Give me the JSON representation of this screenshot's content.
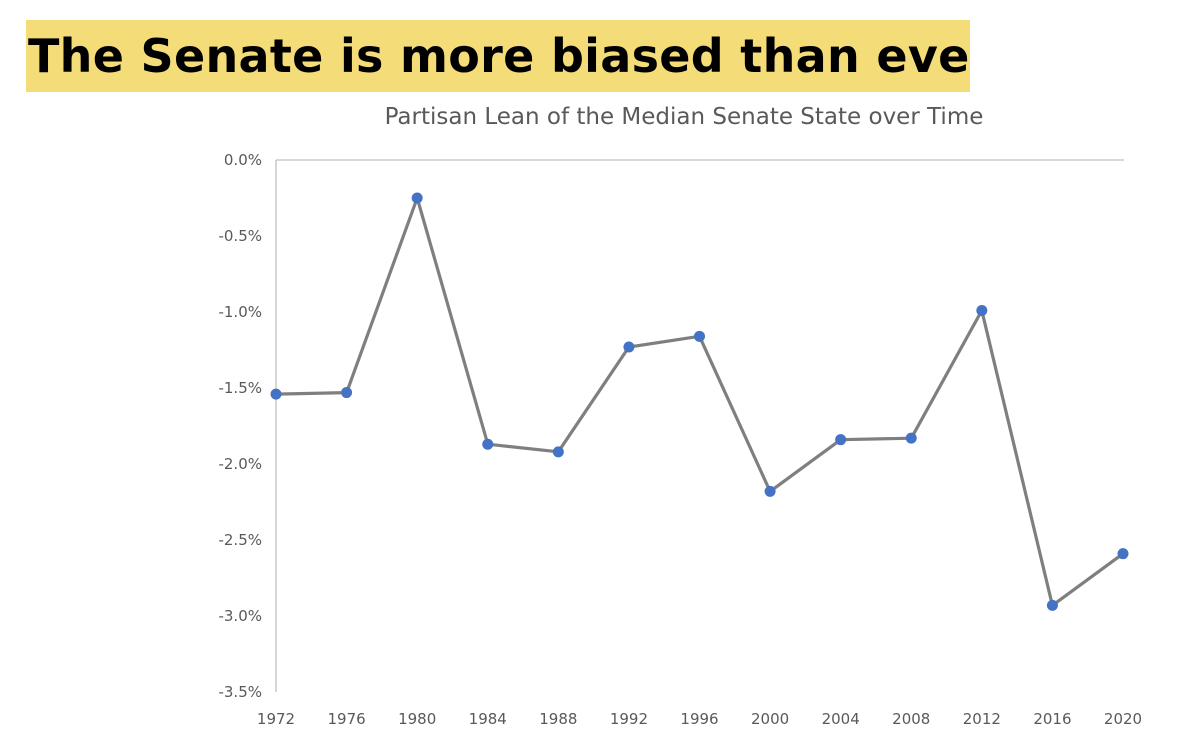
{
  "headline": "The Senate is more biased than ever",
  "chart_data": {
    "type": "line",
    "title": "Partisan Lean of the Median Senate State over Time",
    "xlabel": "",
    "ylabel": "",
    "x": [
      "1972",
      "1976",
      "1980",
      "1984",
      "1988",
      "1992",
      "1996",
      "2000",
      "2004",
      "2008",
      "2012",
      "2016",
      "2020"
    ],
    "y": [
      -1.54,
      -1.53,
      -0.25,
      -1.87,
      -1.92,
      -1.23,
      -1.16,
      -2.18,
      -1.84,
      -1.83,
      -0.99,
      -2.93,
      -2.59
    ],
    "y_unit": "%",
    "ylim": [
      -3.5,
      0.0
    ],
    "yticks": [
      "0.0%",
      "-0.5%",
      "-1.0%",
      "-1.5%",
      "-2.0%",
      "-2.5%",
      "-3.0%",
      "-3.5%"
    ],
    "ytick_values": [
      0.0,
      -0.5,
      -1.0,
      -1.5,
      -2.0,
      -2.5,
      -3.0,
      -3.5
    ],
    "grid": false,
    "line_color": "#7f7f7f",
    "marker_color": "#4472c4",
    "axis_color": "#bfbfbf"
  }
}
